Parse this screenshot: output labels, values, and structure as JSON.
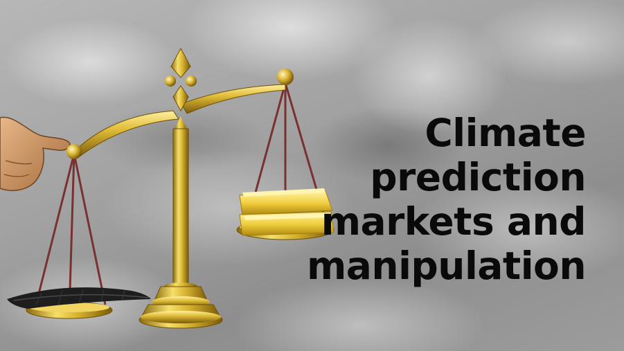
{
  "headline": {
    "lines": [
      "Climate",
      "prediction",
      "markets and",
      "manipulation"
    ]
  },
  "colors": {
    "text": "#0a0a0a",
    "gold": "#d4b030",
    "string": "#7a3030",
    "feather": "#1e1e1e"
  },
  "illustration": {
    "icon": "balance-scale-icon",
    "left_pan_item": "feather-icon",
    "right_pan_item": "gold-bars-icon",
    "hand": "pointing-hand-icon"
  }
}
